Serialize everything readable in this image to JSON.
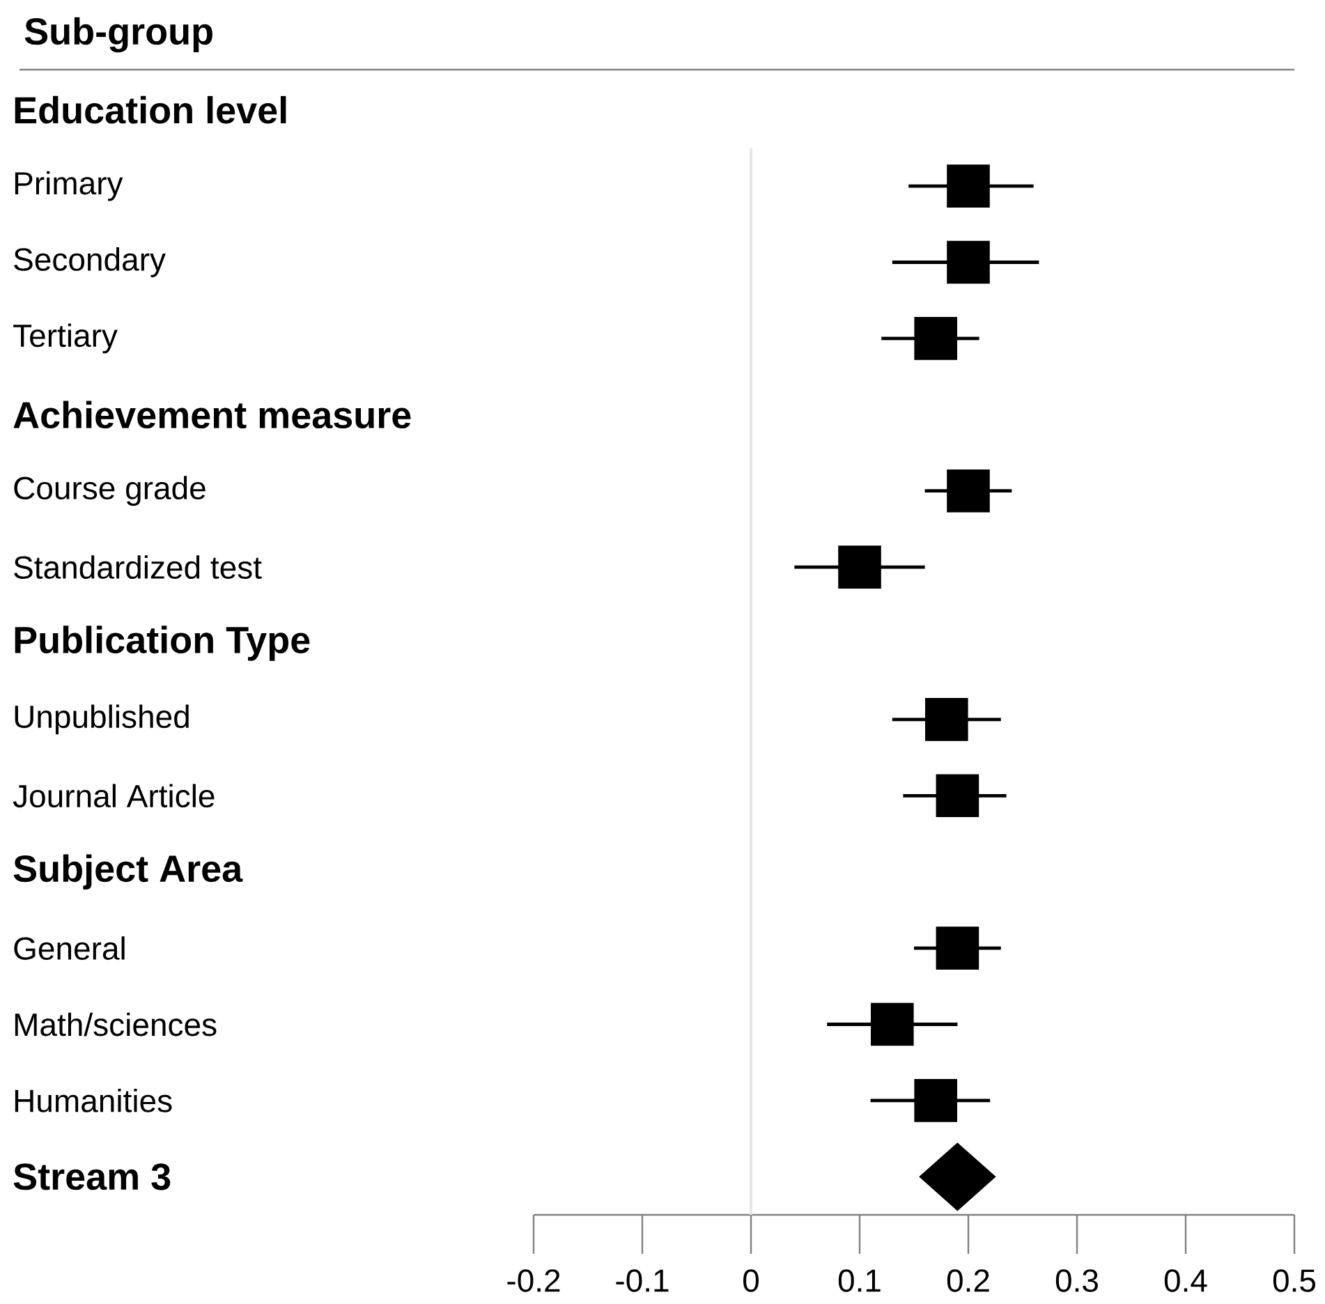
{
  "chart_data": {
    "type": "scatter",
    "orientation": "horizontal",
    "title": "Sub-group",
    "categories": [
      "Education level",
      "Primary",
      "Secondary",
      "Tertiary",
      "Achievement measure",
      "Course grade",
      "Standardized test",
      "Publication Type",
      "Unpublished",
      "Journal Article",
      "Subject Area",
      "General",
      "Math/sciences",
      "Humanities",
      "Stream 3"
    ],
    "series": [
      {
        "color": "#000000",
        "marker": "square",
        "values": [
          null,
          0.2,
          0.2,
          0.17,
          null,
          0.2,
          0.1,
          null,
          0.18,
          0.19,
          null,
          0.19,
          0.13,
          0.17,
          null
        ],
        "errors": [
          null,
          [
            0.145,
            0.26
          ],
          [
            0.13,
            0.265
          ],
          [
            0.12,
            0.21
          ],
          null,
          [
            0.16,
            0.24
          ],
          [
            0.04,
            0.16
          ],
          null,
          [
            0.13,
            0.23
          ],
          [
            0.14,
            0.235
          ],
          null,
          [
            0.15,
            0.23
          ],
          [
            0.07,
            0.19
          ],
          [
            0.11,
            0.22
          ],
          null
        ]
      },
      {
        "color": "#000000",
        "marker": "diamond",
        "values": [
          null,
          null,
          null,
          null,
          null,
          null,
          null,
          null,
          null,
          null,
          null,
          null,
          null,
          null,
          0.19
        ]
      }
    ],
    "xlim": [
      -0.2,
      0.5
    ],
    "xticks": [
      -0.2,
      -0.1,
      0,
      0.1,
      0.2,
      0.3,
      0.4,
      0.5
    ],
    "ref_lines": [
      {
        "axis": "x",
        "value": 0,
        "color": "#e6e6e6"
      }
    ]
  }
}
